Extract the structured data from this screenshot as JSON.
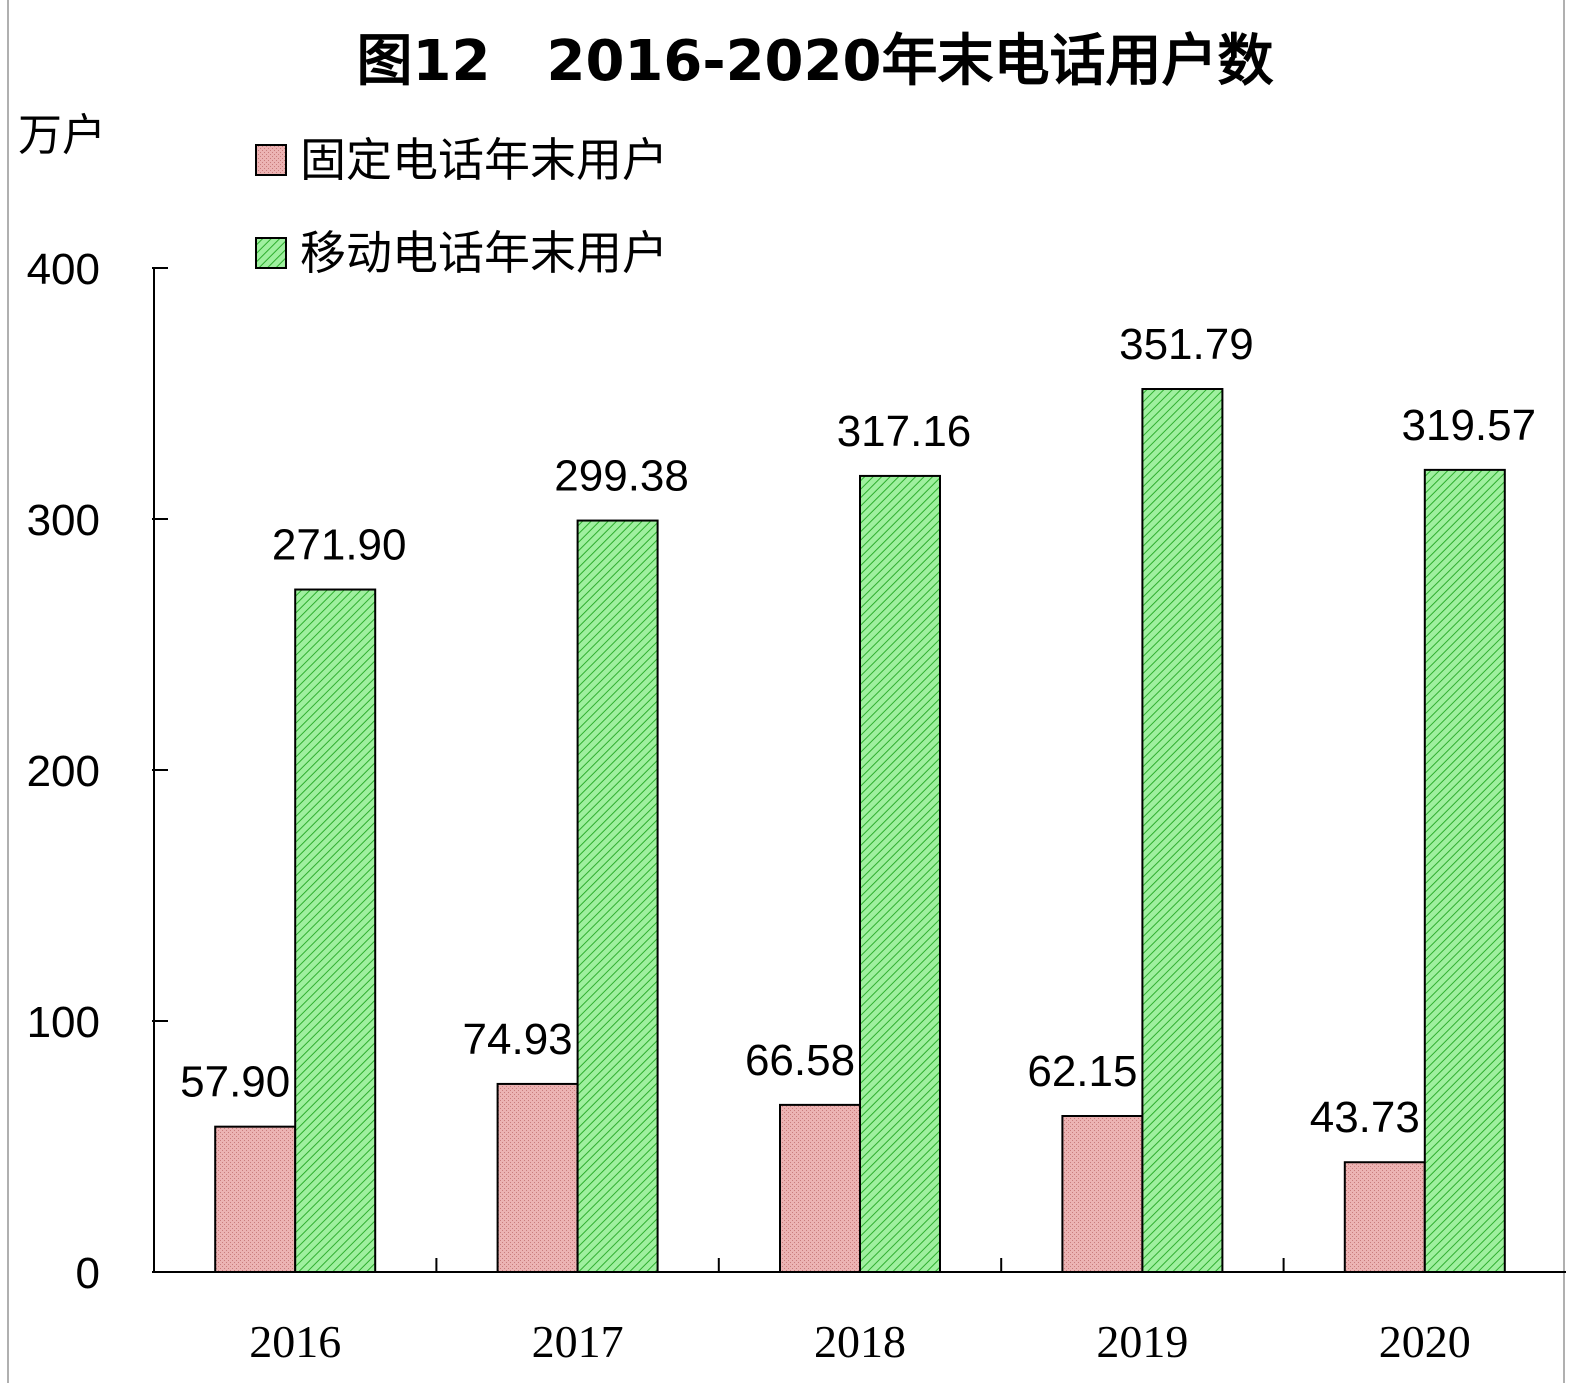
{
  "chart_data": {
    "type": "bar",
    "title": "图12　2016-2020年末电话用户数",
    "ylabel": "万户",
    "xlabel": "",
    "ylim": [
      0,
      400
    ],
    "yticks": [
      "0",
      "100",
      "200",
      "300",
      "400"
    ],
    "categories": [
      "2016",
      "2017",
      "2018",
      "2019",
      "2020"
    ],
    "legend_position": "top-left",
    "grid": false,
    "series": [
      {
        "name": "固定电话年末用户",
        "color": "#e8a0a0",
        "values": [
          57.9,
          74.93,
          66.58,
          62.15,
          43.73
        ],
        "labels": [
          "57.90",
          "74.93",
          "66.58",
          "62.15",
          "43.73"
        ]
      },
      {
        "name": "移动电话年末用户",
        "color": "#7fe07f",
        "values": [
          271.9,
          299.38,
          317.16,
          351.79,
          319.57
        ],
        "labels": [
          "271.90",
          "299.38",
          "317.16",
          "351.79",
          "319.57"
        ]
      }
    ]
  }
}
